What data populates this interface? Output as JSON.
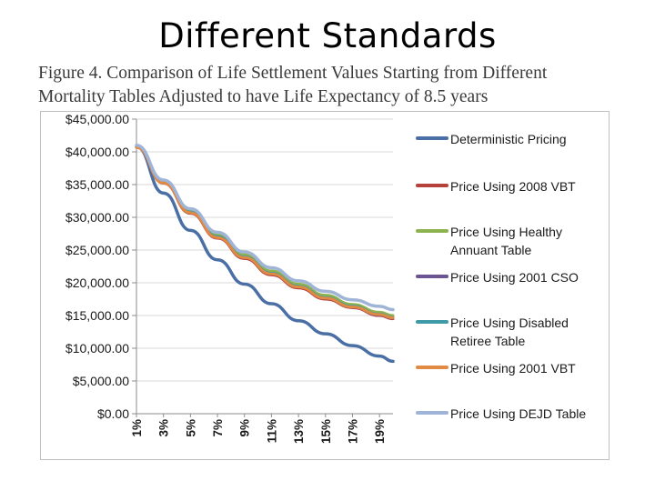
{
  "slide": {
    "title": "Different Standards"
  },
  "figure": {
    "caption_line1": "Figure 4. Comparison of Life Settlement Values Starting from Different",
    "caption_line2": "Mortality Tables Adjusted to have Life Expectancy of 8.5 years"
  },
  "chart_data": {
    "type": "line",
    "title": "Figure 4. Comparison of Life Settlement Values Starting from Different Mortality Tables Adjusted to have Life Expectancy of 8.5 years",
    "xlabel": "",
    "ylabel": "",
    "ylim": [
      0,
      45000
    ],
    "yticks": [
      0,
      5000,
      10000,
      15000,
      20000,
      25000,
      30000,
      35000,
      40000,
      45000
    ],
    "ytick_labels": [
      "$0.00",
      "$5,000.00",
      "$10,000.00",
      "$15,000.00",
      "$20,000.00",
      "$25,000.00",
      "$30,000.00",
      "$35,000.00",
      "$40,000.00",
      "$45,000.00"
    ],
    "x": [
      1,
      3,
      5,
      7,
      9,
      11,
      13,
      15,
      17,
      19,
      20
    ],
    "xtick_labels": [
      "1%",
      "3%",
      "5%",
      "7%",
      "9%",
      "11%",
      "13%",
      "15%",
      "17%",
      "19%"
    ],
    "xtick_values": [
      1,
      3,
      5,
      7,
      9,
      11,
      13,
      15,
      17,
      19
    ],
    "legend_position": "right",
    "series": [
      {
        "name": "Deterministic Pricing",
        "color": "#4a6fa5",
        "values": [
          40800,
          33700,
          28000,
          23500,
          19800,
          16800,
          14200,
          12200,
          10400,
          8800,
          8000
        ]
      },
      {
        "name": "Price Using 2008 VBT",
        "color": "#b5413b",
        "values": [
          40700,
          35200,
          30600,
          26800,
          23700,
          21200,
          19200,
          17500,
          16200,
          15000,
          14500
        ]
      },
      {
        "name": "Price Using Healthy Annuant Table",
        "color": "#8db351",
        "values": [
          40900,
          35500,
          31000,
          27300,
          24300,
          21800,
          19800,
          18100,
          16700,
          15500,
          15000
        ]
      },
      {
        "name": "Price Using 2001 CSO",
        "color": "#6c5593",
        "values": [
          40750,
          35300,
          30700,
          26950,
          23850,
          21350,
          19350,
          17650,
          16300,
          15100,
          14600
        ]
      },
      {
        "name": "Price Using Disabled Retiree Table",
        "color": "#3d9aa6",
        "values": [
          40800,
          35350,
          30800,
          27050,
          23950,
          21450,
          19450,
          17750,
          16400,
          15200,
          14700
        ]
      },
      {
        "name": "Price Using 2001 VBT",
        "color": "#e08a44",
        "values": [
          40700,
          35250,
          30700,
          26900,
          23850,
          21350,
          19350,
          17650,
          16300,
          15150,
          14650
        ]
      },
      {
        "name": "Price Using DEJD Table",
        "color": "#9fb4d6",
        "values": [
          41000,
          35700,
          31300,
          27700,
          24700,
          22300,
          20300,
          18700,
          17400,
          16400,
          15900
        ]
      }
    ]
  }
}
